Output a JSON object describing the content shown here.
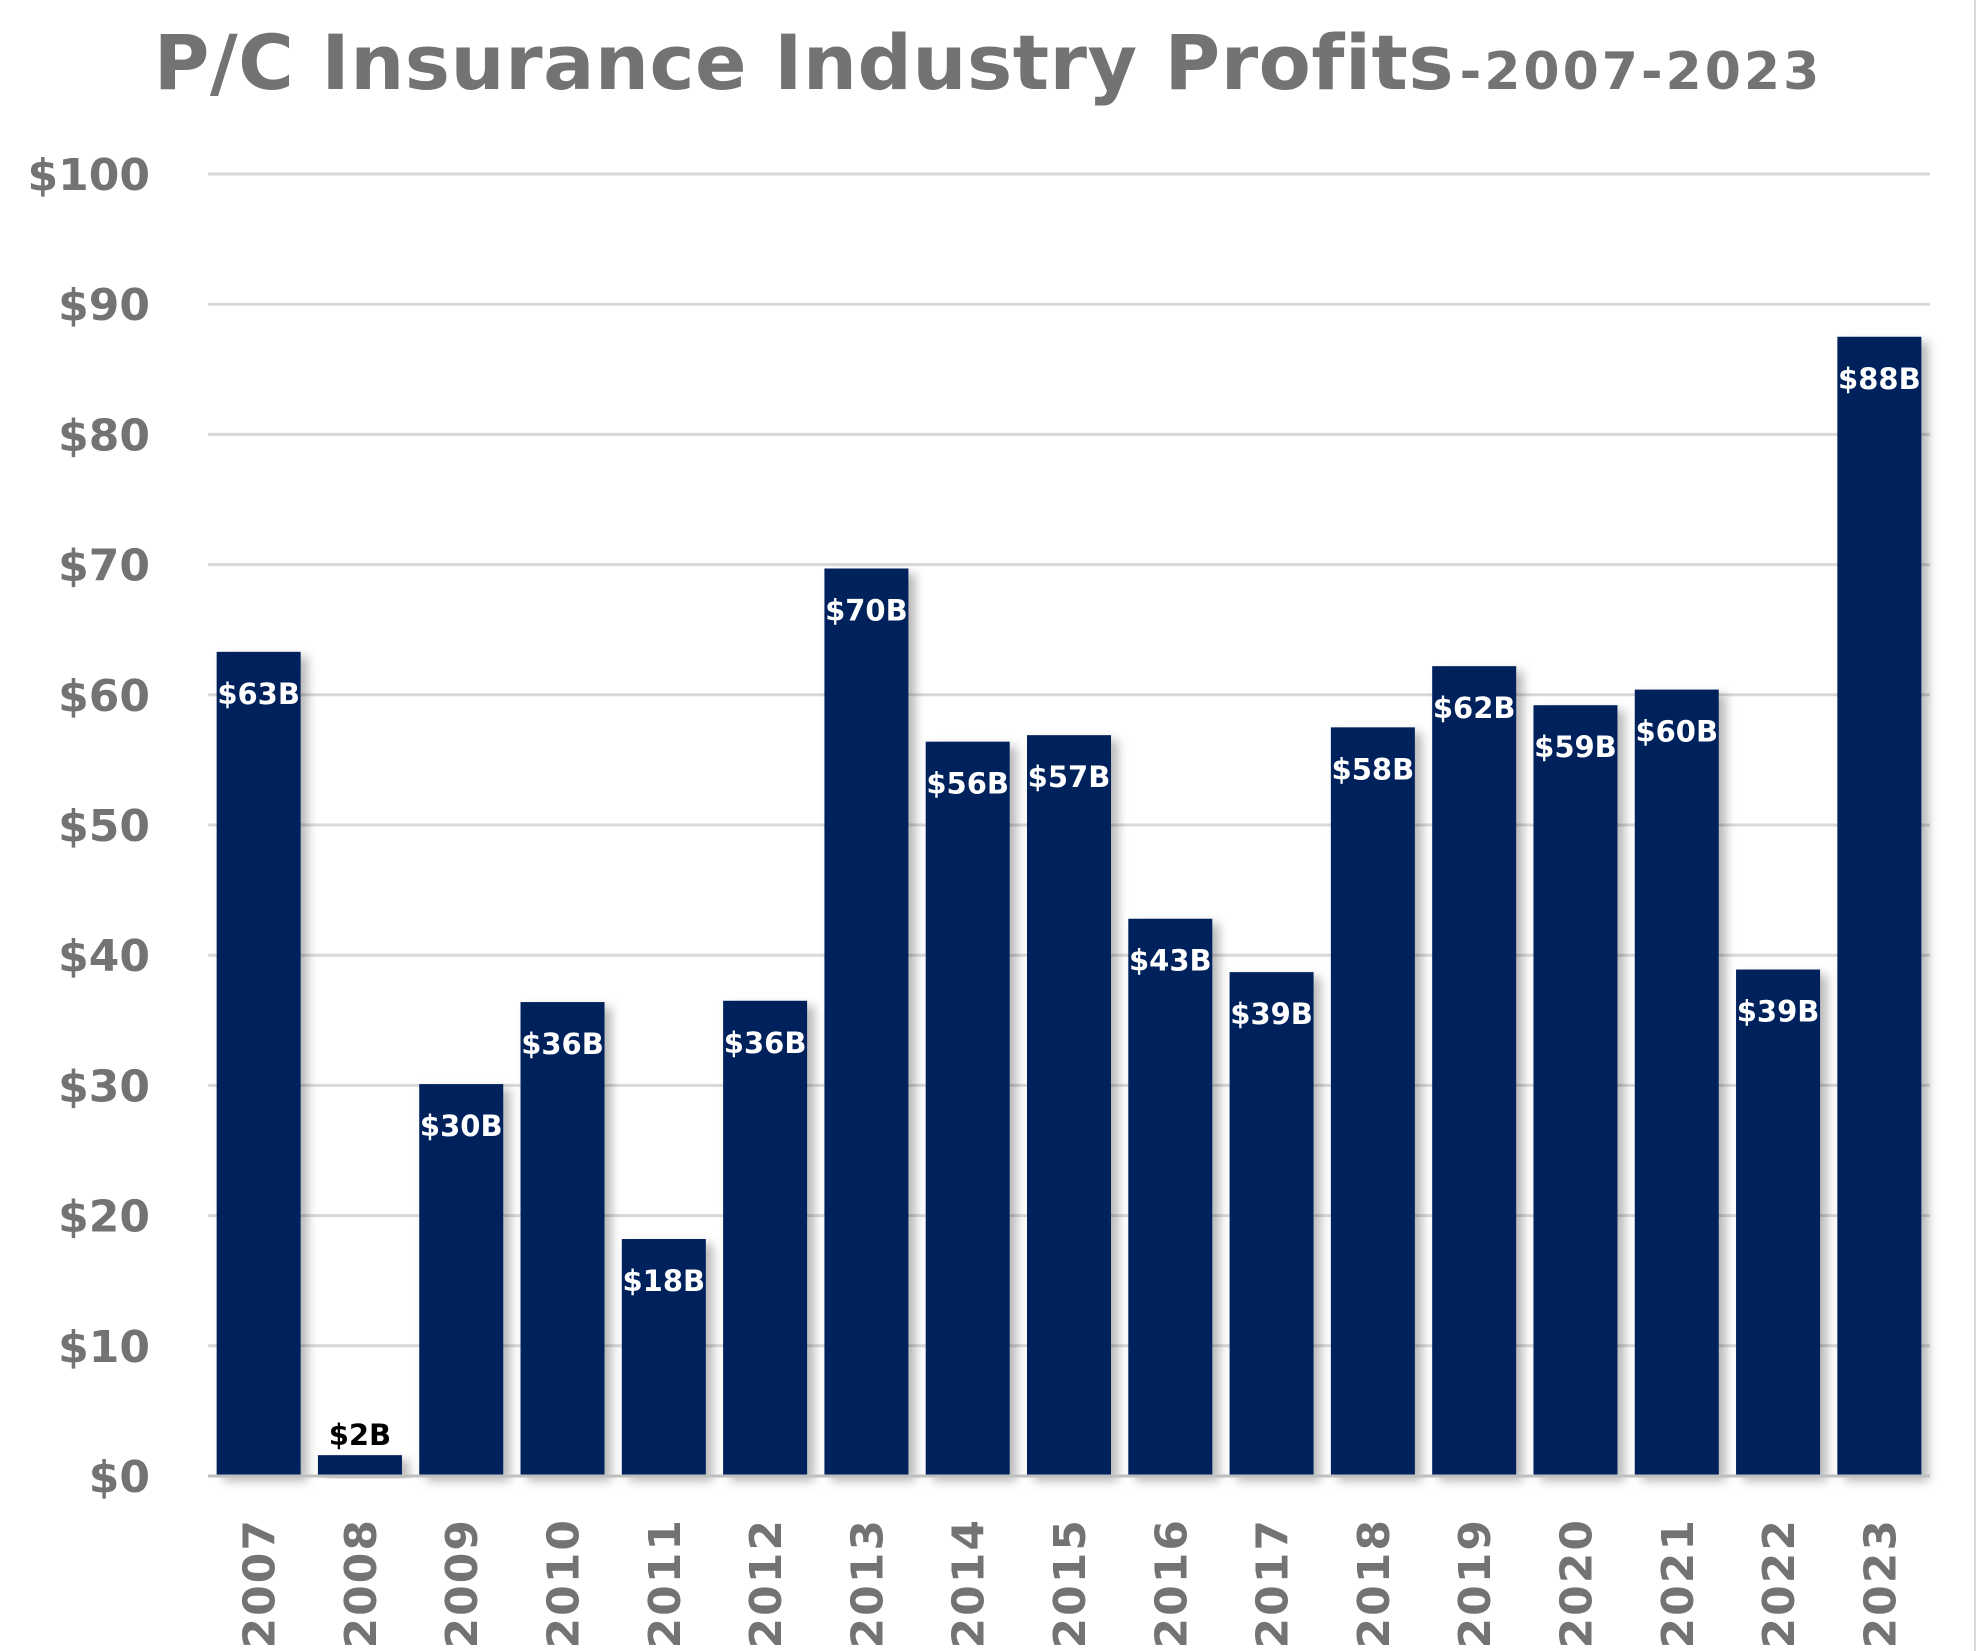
{
  "chart_data": {
    "type": "bar",
    "title": "P/C Insurance Industry Profits",
    "subtitle": "-2007-2023",
    "xlabel": "",
    "ylabel": "",
    "categories": [
      "2007",
      "2008",
      "2009",
      "2010",
      "2011",
      "2012",
      "2013",
      "2014",
      "2015",
      "2016",
      "2017",
      "2018",
      "2019",
      "2020",
      "2021",
      "2022",
      "2023"
    ],
    "values": [
      63.3,
      1.6,
      30.1,
      36.4,
      18.2,
      36.5,
      69.7,
      56.4,
      56.9,
      42.8,
      38.7,
      57.5,
      62.2,
      59.2,
      60.4,
      38.9,
      87.5
    ],
    "data_labels": [
      "$63B",
      "$2B",
      "$30B",
      "$36B",
      "$18B",
      "$36B",
      "$70B",
      "$56B",
      "$57B",
      "$43B",
      "$39B",
      "$58B",
      "$62B",
      "$59B",
      "$60B",
      "$39B",
      "$88B"
    ],
    "ylim": [
      0,
      100
    ],
    "yticks": [
      0,
      10,
      20,
      30,
      40,
      50,
      60,
      70,
      80,
      90,
      100
    ],
    "ytick_labels": [
      "$0",
      "$10",
      "$20",
      "$30",
      "$40",
      "$50",
      "$60",
      "$70",
      "$80",
      "$90",
      "$100"
    ],
    "grid": true,
    "legend": "none",
    "colors": {
      "bar": "#00205b",
      "label_inside": "#ffffff",
      "label_outside": "#000000",
      "axis_text": "#737373",
      "gridline": "#d9d9d9",
      "axis_line": "#bfbfbf"
    }
  }
}
